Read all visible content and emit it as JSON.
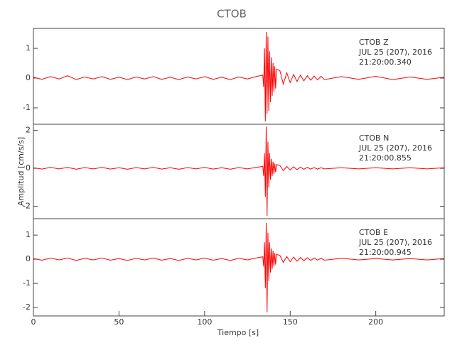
{
  "chart_data": [
    {
      "type": "line",
      "title": "CTOB",
      "annotation": [
        "CTOB   Z",
        "JUL 25 (207), 2016",
        "21:20:00.340"
      ],
      "xlim": [
        0,
        240
      ],
      "ylim": [
        -1.55,
        1.67
      ],
      "yticks": [
        -1,
        0,
        1
      ],
      "x": [
        0,
        5,
        10,
        15,
        20,
        25,
        30,
        35,
        40,
        45,
        50,
        55,
        60,
        65,
        70,
        75,
        80,
        85,
        90,
        95,
        100,
        105,
        110,
        115,
        120,
        125,
        130,
        134,
        134.5,
        135,
        135.5,
        136,
        136.5,
        137,
        137.5,
        138,
        138.5,
        139,
        139.5,
        140,
        140.5,
        141,
        141.5,
        142,
        144,
        146,
        148,
        150,
        152,
        154,
        156,
        158,
        160,
        162,
        164,
        166,
        168,
        170,
        180,
        190,
        200,
        210,
        220,
        230,
        240
      ],
      "series": [
        {
          "color": "#ff0000",
          "values": [
            0.03,
            -0.04,
            0.05,
            -0.03,
            0.08,
            -0.05,
            0.04,
            -0.03,
            0.05,
            -0.04,
            0.03,
            -0.05,
            0.04,
            -0.03,
            0.05,
            -0.04,
            0.03,
            -0.05,
            0.04,
            -0.03,
            0.05,
            -0.04,
            0.03,
            -0.05,
            0.04,
            -0.03,
            0.05,
            0.1,
            -0.3,
            1.0,
            -1.45,
            1.55,
            -1.2,
            1.4,
            -1.1,
            0.9,
            -0.8,
            0.7,
            -0.6,
            0.5,
            -0.45,
            0.4,
            -0.35,
            0.3,
            0.25,
            -0.2,
            0.18,
            -0.15,
            0.12,
            -0.11,
            0.1,
            -0.09,
            0.08,
            -0.07,
            0.07,
            -0.06,
            0.06,
            -0.05,
            0.05,
            -0.04,
            0.06,
            -0.05,
            0.04,
            -0.04,
            0.03
          ]
        }
      ]
    },
    {
      "type": "line",
      "y_label": "Amplitud [cm/s/s]",
      "annotation": [
        "CTOB   N",
        "JUL 25 (207), 2016",
        "21:20:00.855"
      ],
      "xlim": [
        0,
        240
      ],
      "ylim": [
        -2.65,
        2.32
      ],
      "yticks": [
        -2,
        0,
        2
      ],
      "x": [
        0,
        5,
        10,
        15,
        20,
        25,
        30,
        35,
        40,
        45,
        50,
        55,
        60,
        65,
        70,
        75,
        80,
        85,
        90,
        95,
        100,
        105,
        110,
        115,
        120,
        125,
        130,
        134,
        134.5,
        135,
        135.5,
        136,
        136.5,
        137,
        137.5,
        138,
        138.5,
        139,
        139.5,
        140,
        140.5,
        141,
        141.5,
        142,
        144,
        146,
        148,
        150,
        152,
        154,
        156,
        158,
        160,
        162,
        164,
        166,
        168,
        170,
        180,
        190,
        200,
        210,
        220,
        230,
        240
      ],
      "series": [
        {
          "color": "#ff0000",
          "values": [
            0.03,
            -0.04,
            0.05,
            -0.03,
            0.05,
            -0.05,
            0.04,
            -0.03,
            0.05,
            -0.04,
            0.03,
            -0.05,
            0.04,
            -0.03,
            0.05,
            -0.04,
            0.03,
            -0.05,
            0.04,
            -0.03,
            0.05,
            -0.04,
            0.03,
            -0.05,
            0.04,
            -0.03,
            0.05,
            0.1,
            -0.4,
            0.8,
            -1.5,
            2.2,
            -2.5,
            1.4,
            -1.0,
            0.8,
            -0.6,
            0.5,
            -0.4,
            0.35,
            -0.3,
            0.25,
            -0.2,
            0.2,
            0.15,
            -0.12,
            0.1,
            -0.09,
            0.08,
            -0.07,
            0.06,
            -0.05,
            0.05,
            -0.04,
            0.04,
            -0.04,
            0.03,
            -0.03,
            0.03,
            -0.03,
            0.03,
            -0.03,
            0.03,
            -0.03,
            0.03
          ]
        }
      ]
    },
    {
      "type": "line",
      "x_label": "Tiempo [s]",
      "annotation": [
        "CTOB   E",
        "JUL 25 (207), 2016",
        "21:20:00.945"
      ],
      "xlim": [
        0,
        240
      ],
      "xticks": [
        0,
        50,
        100,
        150,
        200
      ],
      "ylim": [
        -2.35,
        1.68
      ],
      "yticks": [
        -2,
        -1,
        0,
        1
      ],
      "x": [
        0,
        5,
        10,
        15,
        20,
        25,
        30,
        35,
        40,
        45,
        50,
        55,
        60,
        65,
        70,
        75,
        80,
        85,
        90,
        95,
        100,
        105,
        110,
        115,
        120,
        125,
        130,
        134,
        134.5,
        135,
        135.5,
        136,
        136.5,
        137,
        137.5,
        138,
        138.5,
        139,
        139.5,
        140,
        140.5,
        141,
        141.5,
        142,
        144,
        146,
        148,
        150,
        152,
        154,
        156,
        158,
        160,
        162,
        164,
        166,
        168,
        170,
        180,
        190,
        200,
        210,
        220,
        230,
        240
      ],
      "series": [
        {
          "color": "#ff0000",
          "values": [
            0.03,
            -0.04,
            0.05,
            -0.03,
            0.05,
            -0.05,
            0.04,
            -0.03,
            0.05,
            -0.04,
            0.03,
            -0.05,
            0.04,
            -0.03,
            0.05,
            -0.04,
            0.03,
            -0.05,
            0.04,
            -0.03,
            0.05,
            -0.04,
            0.03,
            -0.05,
            0.04,
            -0.03,
            0.05,
            0.1,
            -0.3,
            0.7,
            -1.2,
            1.5,
            -2.2,
            1.1,
            -0.9,
            0.7,
            -0.55,
            0.45,
            -0.4,
            0.35,
            -0.3,
            0.25,
            -0.22,
            0.2,
            0.16,
            -0.13,
            0.11,
            -0.1,
            0.09,
            -0.08,
            0.07,
            -0.06,
            0.06,
            -0.05,
            0.05,
            -0.04,
            0.04,
            -0.04,
            0.04,
            -0.03,
            0.03,
            -0.03,
            0.03,
            -0.03,
            0.03
          ]
        }
      ]
    }
  ]
}
